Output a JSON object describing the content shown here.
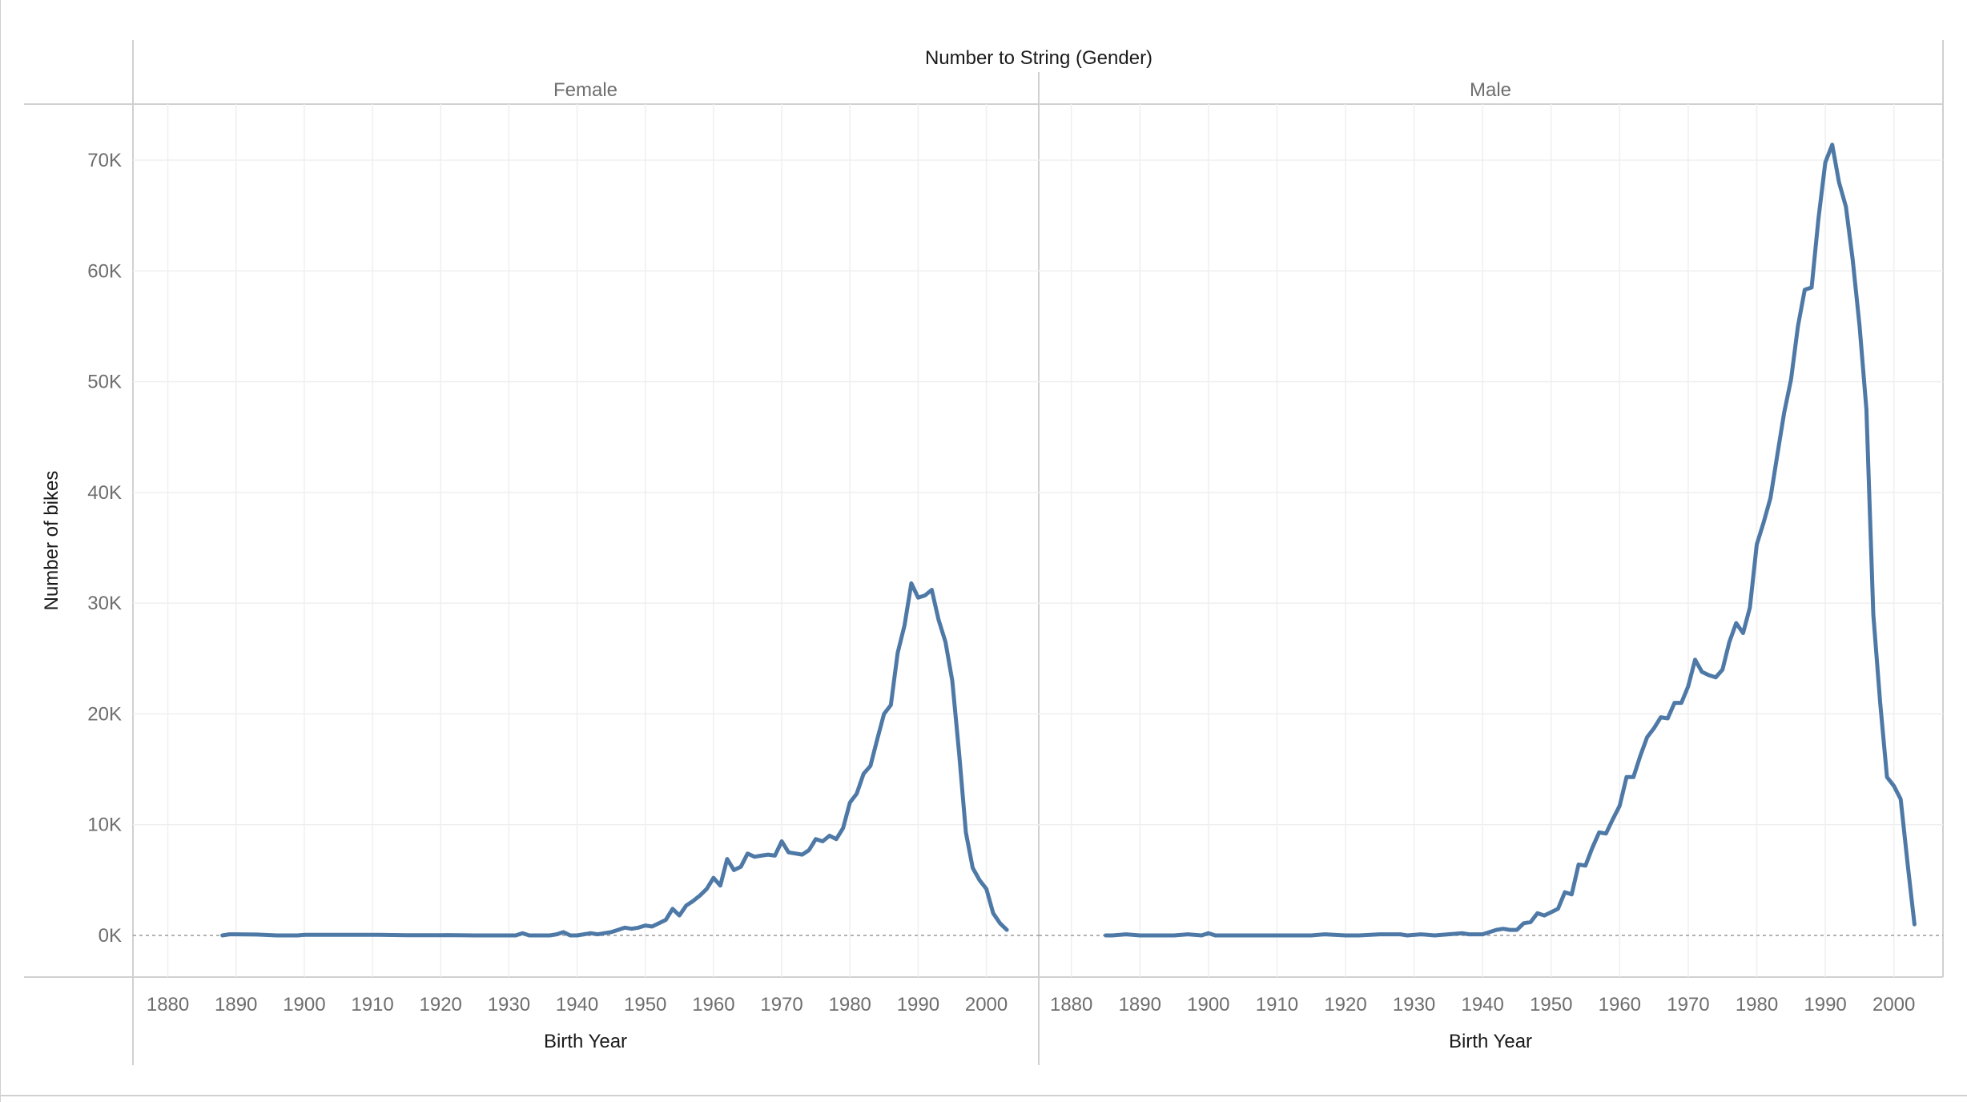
{
  "colors": {
    "series": "#4e79a7"
  },
  "chart_data": {
    "type": "line",
    "title": "Number to String (Gender)",
    "xlabel": "Birth Year",
    "ylabel": "Number of bikes",
    "xlim": [
      1877,
      2010
    ],
    "ylim": [
      0,
      75000
    ],
    "x_ticks": [
      1880,
      1890,
      1900,
      1910,
      1920,
      1930,
      1940,
      1950,
      1960,
      1970,
      1980,
      1990,
      2000
    ],
    "x_tick_labels": [
      "1880",
      "1890",
      "1900",
      "1910",
      "1920",
      "1930",
      "1940",
      "1950",
      "1960",
      "1970",
      "1980",
      "1990",
      "2000"
    ],
    "y_ticks": [
      0,
      10000,
      20000,
      30000,
      40000,
      50000,
      60000,
      70000
    ],
    "y_tick_labels": [
      "0K",
      "10K",
      "20K",
      "30K",
      "40K",
      "50K",
      "60K",
      "70K"
    ],
    "grid": true,
    "legend": "none",
    "panels": [
      {
        "name": "Female",
        "x": [
          1888,
          1889,
          1890,
          1893,
          1896,
          1899,
          1900,
          1905,
          1910,
          1911,
          1915,
          1920,
          1921,
          1925,
          1928,
          1930,
          1931,
          1932,
          1933,
          1934,
          1935,
          1936,
          1937,
          1938,
          1939,
          1940,
          1941,
          1942,
          1943,
          1944,
          1945,
          1946,
          1947,
          1948,
          1949,
          1950,
          1951,
          1952,
          1953,
          1954,
          1955,
          1956,
          1957,
          1958,
          1959,
          1960,
          1961,
          1962,
          1963,
          1964,
          1965,
          1966,
          1967,
          1968,
          1969,
          1970,
          1971,
          1972,
          1973,
          1974,
          1975,
          1976,
          1977,
          1978,
          1979,
          1980,
          1981,
          1982,
          1983,
          1984,
          1985,
          1986,
          1987,
          1988,
          1989,
          1990,
          1991,
          1992,
          1993,
          1994,
          1995,
          1996,
          1997,
          1998,
          1999,
          2000,
          2001,
          2002,
          2003
        ],
        "values": [
          0,
          100,
          100,
          80,
          0,
          0,
          50,
          50,
          50,
          50,
          20,
          20,
          30,
          0,
          0,
          0,
          0,
          200,
          0,
          0,
          0,
          0,
          100,
          300,
          0,
          0,
          100,
          200,
          100,
          200,
          300,
          500,
          700,
          600,
          700,
          900,
          800,
          1100,
          1400,
          2400,
          1800,
          2700,
          3100,
          3600,
          4200,
          5200,
          4500,
          6900,
          5900,
          6200,
          7400,
          7100,
          7200,
          7300,
          7200,
          8500,
          7500,
          7400,
          7300,
          7700,
          8700,
          8500,
          9000,
          8700,
          9700,
          12000,
          12800,
          14600,
          15300,
          17700,
          20000,
          20800,
          25500,
          28000,
          31800,
          30500,
          30700,
          31200,
          28500,
          26500,
          23000,
          16500,
          9300,
          6100,
          5000,
          4200,
          2000,
          1100,
          500
        ]
      },
      {
        "name": "Male",
        "x": [
          1885,
          1886,
          1888,
          1890,
          1895,
          1897,
          1899,
          1900,
          1901,
          1905,
          1910,
          1915,
          1917,
          1920,
          1922,
          1925,
          1928,
          1929,
          1931,
          1933,
          1935,
          1937,
          1938,
          1940,
          1941,
          1942,
          1943,
          1944,
          1945,
          1946,
          1947,
          1948,
          1949,
          1950,
          1951,
          1952,
          1953,
          1954,
          1955,
          1956,
          1957,
          1958,
          1959,
          1960,
          1961,
          1962,
          1963,
          1964,
          1965,
          1966,
          1967,
          1968,
          1969,
          1970,
          1971,
          1972,
          1973,
          1974,
          1975,
          1976,
          1977,
          1978,
          1979,
          1980,
          1981,
          1982,
          1983,
          1984,
          1985,
          1986,
          1987,
          1988,
          1989,
          1990,
          1991,
          1992,
          1993,
          1994,
          1995,
          1996,
          1997,
          1998,
          1999,
          2000,
          2001,
          2002,
          2003
        ],
        "values": [
          0,
          0,
          100,
          0,
          0,
          100,
          0,
          200,
          0,
          0,
          0,
          0,
          100,
          0,
          0,
          100,
          100,
          0,
          100,
          0,
          100,
          200,
          100,
          100,
          300,
          500,
          600,
          500,
          500,
          1100,
          1200,
          2000,
          1800,
          2100,
          2400,
          3900,
          3700,
          6400,
          6300,
          7900,
          9300,
          9200,
          10500,
          11700,
          14300,
          14300,
          16200,
          17900,
          18700,
          19700,
          19600,
          21000,
          21000,
          22500,
          24900,
          23800,
          23500,
          23300,
          24000,
          26500,
          28200,
          27300,
          29600,
          35300,
          37300,
          39500,
          43400,
          47200,
          50200,
          55000,
          58300,
          58500,
          64700,
          69800,
          71400,
          68000,
          65800,
          61000,
          55000,
          47500,
          29000,
          21000,
          14300,
          13500,
          12300,
          6500,
          1000
        ]
      }
    ]
  },
  "header": {
    "dimension_title": "Number to String (Gender)"
  }
}
